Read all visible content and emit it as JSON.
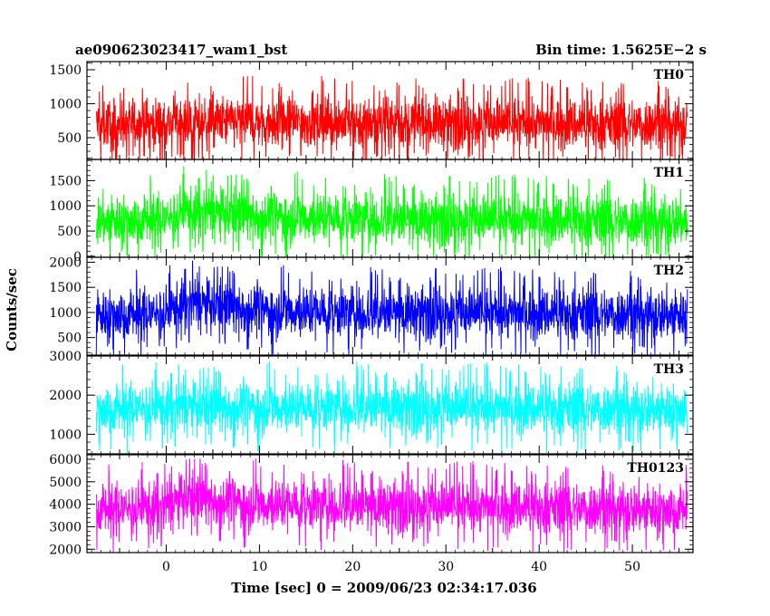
{
  "title_left": "ae090623023417_wam1_bst",
  "title_right": "Bin time: 1.5625E−2 s",
  "ylabel": "Counts/sec",
  "xlabel": "Time [sec] 0 = 2009/06/23 02:34:17.036",
  "chart_data": [
    {
      "type": "line",
      "panel_label": "TH0",
      "color": "#ff0000",
      "xlim": [
        -8.5,
        56.5
      ],
      "ylim": [
        180,
        1620
      ],
      "yticks": [
        500,
        1000,
        1500
      ],
      "ytick_labels": [
        "500",
        "1000",
        "1500"
      ],
      "data_range": [
        -7.5,
        55.9
      ],
      "values": [
        [
          -7.5,
          700
        ],
        [
          0,
          720
        ],
        [
          10,
          740
        ],
        [
          20,
          730
        ],
        [
          30,
          720
        ],
        [
          40,
          710
        ],
        [
          50,
          700
        ],
        [
          55.9,
          710
        ]
      ]
    },
    {
      "type": "line",
      "panel_label": "TH1",
      "color": "#00ff00",
      "xlim": [
        -8.5,
        56.5
      ],
      "ylim": [
        -20,
        1920
      ],
      "yticks": [
        0,
        500,
        1000,
        1500
      ],
      "ytick_labels": [
        "0",
        "500",
        "1000",
        "1500"
      ],
      "data_range": [
        -7.5,
        55.9
      ],
      "values": [
        [
          -7.5,
          700
        ],
        [
          0,
          750
        ],
        [
          2,
          900
        ],
        [
          10,
          800
        ],
        [
          20,
          750
        ],
        [
          30,
          720
        ],
        [
          40,
          720
        ],
        [
          50,
          700
        ],
        [
          55.9,
          700
        ]
      ]
    },
    {
      "type": "line",
      "panel_label": "TH2",
      "color": "#0000ff",
      "xlim": [
        -8.5,
        56.5
      ],
      "ylim": [
        150,
        2100
      ],
      "yticks": [
        500,
        1000,
        1500,
        2000
      ],
      "ytick_labels": [
        "500",
        "1000",
        "1500",
        "2000"
      ],
      "data_range": [
        -7.5,
        55.9
      ],
      "values": [
        [
          -7.5,
          950
        ],
        [
          0,
          1000
        ],
        [
          2,
          1200
        ],
        [
          10,
          1050
        ],
        [
          20,
          1000
        ],
        [
          30,
          1000
        ],
        [
          40,
          980
        ],
        [
          50,
          970
        ],
        [
          55.9,
          960
        ]
      ]
    },
    {
      "type": "line",
      "panel_label": "TH3",
      "color": "#00ffff",
      "xlim": [
        -8.5,
        56.5
      ],
      "ylim": [
        500,
        3000
      ],
      "yticks": [
        1000,
        2000,
        3000
      ],
      "ytick_labels": [
        "1000",
        "2000",
        "3000"
      ],
      "data_range": [
        -7.5,
        55.9
      ],
      "values": [
        [
          -7.5,
          1650
        ],
        [
          0,
          1700
        ],
        [
          10,
          1700
        ],
        [
          20,
          1700
        ],
        [
          30,
          1680
        ],
        [
          40,
          1660
        ],
        [
          50,
          1650
        ],
        [
          55.9,
          1650
        ]
      ]
    },
    {
      "type": "line",
      "panel_label": "TH0123",
      "color": "#ff00ff",
      "xlim": [
        -8.5,
        56.5
      ],
      "ylim": [
        1850,
        6200
      ],
      "yticks": [
        2000,
        3000,
        4000,
        5000,
        6000
      ],
      "ytick_labels": [
        "2000",
        "3000",
        "4000",
        "5000",
        "6000"
      ],
      "data_range": [
        -7.5,
        55.9
      ],
      "values": [
        [
          -7.5,
          3800
        ],
        [
          0,
          3900
        ],
        [
          2,
          4300
        ],
        [
          10,
          4000
        ],
        [
          20,
          3950
        ],
        [
          30,
          3900
        ],
        [
          40,
          3850
        ],
        [
          50,
          3800
        ],
        [
          55.9,
          3800
        ]
      ]
    }
  ],
  "xaxis": {
    "xlim": [
      -8.5,
      56.5
    ],
    "major_ticks": [
      0,
      10,
      20,
      30,
      40,
      50
    ],
    "tick_labels": [
      "0",
      "10",
      "20",
      "30",
      "40",
      "50"
    ]
  }
}
